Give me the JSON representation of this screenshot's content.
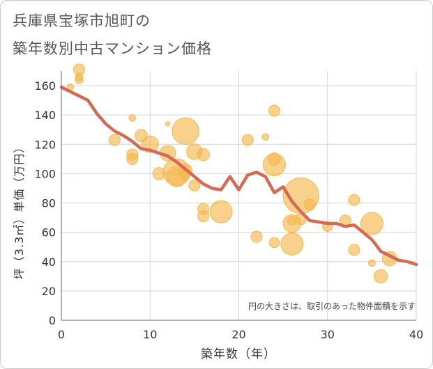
{
  "chart_data": {
    "type": "scatter",
    "title_lines": [
      "兵庫県宝塚市旭町の",
      "築年数別中古マンション価格"
    ],
    "xlabel": "築年数（年）",
    "ylabel": "坪（3.3㎡）単価（万円）",
    "xlim": [
      0,
      40
    ],
    "ylim": [
      0,
      170
    ],
    "xticks": [
      0,
      10,
      20,
      30,
      40
    ],
    "yticks": [
      0,
      20,
      40,
      60,
      80,
      100,
      120,
      140,
      160
    ],
    "grid": true,
    "annotation": "円の大きさは、取引のあった物件面積を示す",
    "colors": {
      "bubble": "#f5b84f",
      "trend": "#d46a54",
      "grid": "#ccd6e2",
      "axis_text": "#333333"
    },
    "series": [
      {
        "kind": "bubbles",
        "points": [
          {
            "x": 1,
            "y": 159,
            "s": 0.3
          },
          {
            "x": 2,
            "y": 171,
            "s": 0.5
          },
          {
            "x": 2,
            "y": 166,
            "s": 0.35
          },
          {
            "x": 2,
            "y": 164,
            "s": 0.35
          },
          {
            "x": 6,
            "y": 123,
            "s": 0.5
          },
          {
            "x": 8,
            "y": 138,
            "s": 0.3
          },
          {
            "x": 8,
            "y": 113,
            "s": 0.5
          },
          {
            "x": 8,
            "y": 110,
            "s": 0.5
          },
          {
            "x": 9,
            "y": 126,
            "s": 0.55
          },
          {
            "x": 10,
            "y": 120,
            "s": 0.75
          },
          {
            "x": 11,
            "y": 100,
            "s": 0.55
          },
          {
            "x": 12,
            "y": 114,
            "s": 0.7
          },
          {
            "x": 12,
            "y": 134,
            "s": 0.2
          },
          {
            "x": 13,
            "y": 101,
            "s": 1.2
          },
          {
            "x": 13,
            "y": 98,
            "s": 0.9
          },
          {
            "x": 14,
            "y": 129,
            "s": 1.2
          },
          {
            "x": 14,
            "y": 102,
            "s": 0.6
          },
          {
            "x": 14,
            "y": 99,
            "s": 0.4
          },
          {
            "x": 15,
            "y": 115,
            "s": 0.7
          },
          {
            "x": 15,
            "y": 92,
            "s": 0.5
          },
          {
            "x": 16,
            "y": 113,
            "s": 0.55
          },
          {
            "x": 16,
            "y": 76,
            "s": 0.5
          },
          {
            "x": 16,
            "y": 71,
            "s": 0.5
          },
          {
            "x": 18,
            "y": 74,
            "s": 1.0
          },
          {
            "x": 21,
            "y": 123,
            "s": 0.5
          },
          {
            "x": 22,
            "y": 57,
            "s": 0.5
          },
          {
            "x": 23,
            "y": 125,
            "s": 0.3
          },
          {
            "x": 24,
            "y": 143,
            "s": 0.5
          },
          {
            "x": 24,
            "y": 110,
            "s": 0.55
          },
          {
            "x": 24,
            "y": 106,
            "s": 1.0
          },
          {
            "x": 24,
            "y": 53,
            "s": 0.45
          },
          {
            "x": 26,
            "y": 68,
            "s": 0.4
          },
          {
            "x": 26,
            "y": 66,
            "s": 0.8
          },
          {
            "x": 26,
            "y": 52,
            "s": 1.0
          },
          {
            "x": 27,
            "y": 85,
            "s": 1.6
          },
          {
            "x": 27,
            "y": 69,
            "s": 0.5
          },
          {
            "x": 28,
            "y": 79,
            "s": 0.5
          },
          {
            "x": 30,
            "y": 64,
            "s": 0.45
          },
          {
            "x": 32,
            "y": 68,
            "s": 0.5
          },
          {
            "x": 33,
            "y": 82,
            "s": 0.5
          },
          {
            "x": 33,
            "y": 48,
            "s": 0.5
          },
          {
            "x": 35,
            "y": 66,
            "s": 1.0
          },
          {
            "x": 35,
            "y": 39,
            "s": 0.3
          },
          {
            "x": 36,
            "y": 30,
            "s": 0.6
          },
          {
            "x": 37,
            "y": 42,
            "s": 0.65
          }
        ]
      },
      {
        "kind": "trend",
        "points": [
          [
            0,
            159
          ],
          [
            1,
            156
          ],
          [
            2,
            153
          ],
          [
            3,
            150
          ],
          [
            4,
            141
          ],
          [
            5,
            134
          ],
          [
            6,
            129
          ],
          [
            7,
            126
          ],
          [
            8,
            122
          ],
          [
            9,
            117
          ],
          [
            10,
            116
          ],
          [
            11,
            114
          ],
          [
            12,
            112
          ],
          [
            13,
            108
          ],
          [
            14,
            103
          ],
          [
            15,
            98
          ],
          [
            16,
            93
          ],
          [
            17,
            90
          ],
          [
            18,
            89
          ],
          [
            19,
            98
          ],
          [
            20,
            89
          ],
          [
            21,
            99
          ],
          [
            22,
            101
          ],
          [
            23,
            98
          ],
          [
            24,
            87
          ],
          [
            25,
            91
          ],
          [
            26,
            81
          ],
          [
            27,
            74
          ],
          [
            28,
            68
          ],
          [
            29,
            67
          ],
          [
            30,
            66
          ],
          [
            31,
            66
          ],
          [
            32,
            64
          ],
          [
            33,
            65
          ],
          [
            34,
            60
          ],
          [
            35,
            55
          ],
          [
            36,
            47
          ],
          [
            37,
            44
          ],
          [
            38,
            41
          ],
          [
            39,
            40
          ],
          [
            40,
            38
          ]
        ]
      }
    ]
  }
}
